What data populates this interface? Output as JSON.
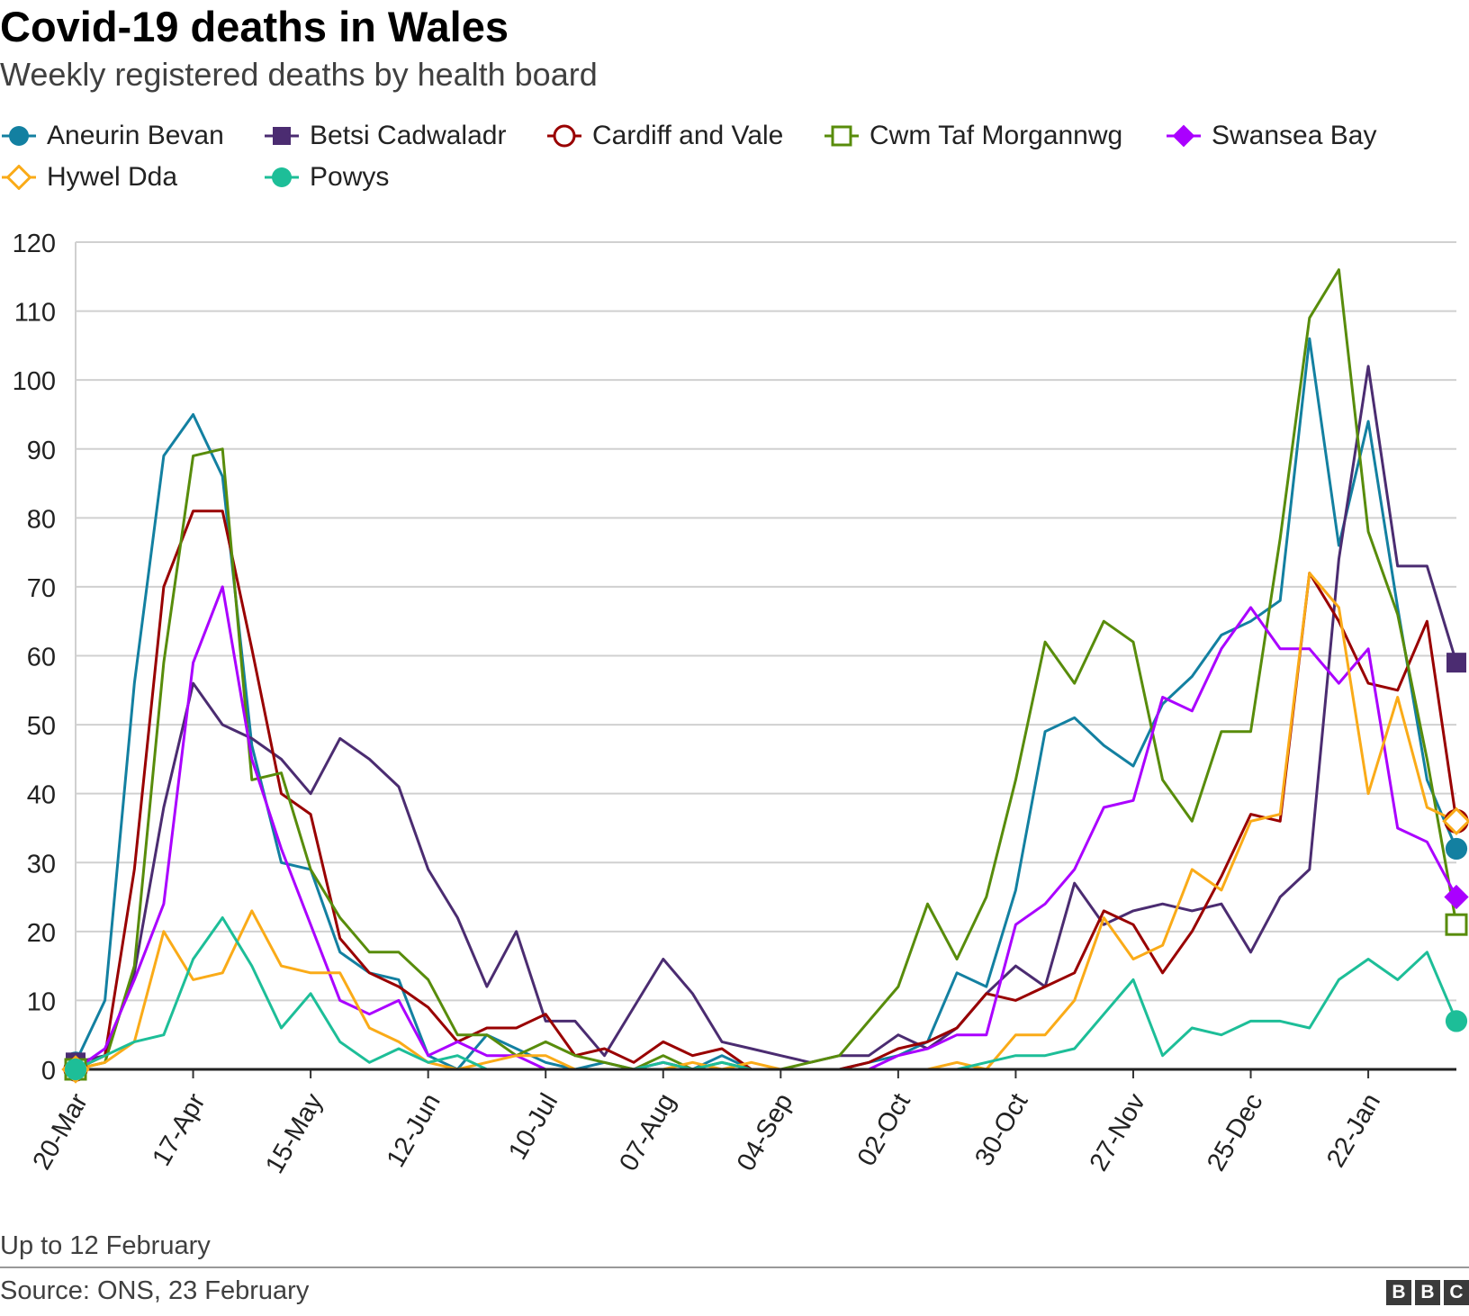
{
  "header": {
    "title": "Covid-19 deaths in Wales",
    "subtitle": "Weekly registered deaths by health board"
  },
  "footer": {
    "note": "Up to 12 February",
    "source": "Source: ONS, 23 February",
    "logo": "BBC",
    "logo_letters": [
      "B",
      "B",
      "C"
    ]
  },
  "chart_data": {
    "type": "line",
    "title": "Covid-19 deaths in Wales",
    "subtitle": "Weekly registered deaths by health board",
    "ylim": [
      0,
      120
    ],
    "y_ticks": [
      0,
      10,
      20,
      30,
      40,
      50,
      60,
      70,
      80,
      90,
      100,
      110,
      120
    ],
    "x_tick_labels": [
      "20-Mar",
      "17-Apr",
      "15-May",
      "12-Jun",
      "10-Jul",
      "07-Aug",
      "04-Sep",
      "02-Oct",
      "30-Oct",
      "27-Nov",
      "25-Dec",
      "22-Jan"
    ],
    "x_tick_indices": [
      0,
      4,
      8,
      12,
      16,
      20,
      24,
      28,
      32,
      36,
      40,
      44
    ],
    "x_start": "20-Mar",
    "x_end": "12 February",
    "x_interval": "weekly",
    "grid": true,
    "legend_position": "top",
    "series": [
      {
        "name": "Aneurin Bevan",
        "color": "#1380A1",
        "marker": "circle-filled",
        "values": [
          1,
          10,
          56,
          89,
          95,
          86,
          47,
          30,
          29,
          17,
          14,
          13,
          2,
          0,
          5,
          3,
          1,
          0,
          1,
          0,
          1,
          0,
          2,
          0,
          0,
          0,
          0,
          1,
          2,
          4,
          14,
          12,
          26,
          49,
          51,
          47,
          44,
          53,
          57,
          63,
          65,
          68,
          106,
          76,
          94,
          67,
          42,
          32
        ]
      },
      {
        "name": "Betsi Cadwaladr",
        "color": "#4B2C71",
        "marker": "square-filled",
        "values": [
          1,
          2,
          14,
          38,
          56,
          50,
          48,
          45,
          40,
          48,
          45,
          41,
          29,
          22,
          12,
          20,
          7,
          7,
          2,
          9,
          16,
          11,
          4,
          3,
          2,
          1,
          2,
          2,
          5,
          3,
          6,
          11,
          15,
          12,
          27,
          21,
          23,
          24,
          23,
          24,
          17,
          25,
          29,
          74,
          102,
          73,
          73,
          59
        ]
      },
      {
        "name": "Cardiff and Vale",
        "color": "#990000",
        "marker": "circle-open",
        "values": [
          0,
          2,
          29,
          70,
          81,
          81,
          61,
          40,
          37,
          19,
          14,
          12,
          9,
          4,
          6,
          6,
          8,
          2,
          3,
          1,
          4,
          2,
          3,
          0,
          0,
          0,
          0,
          1,
          3,
          4,
          6,
          11,
          10,
          12,
          14,
          23,
          21,
          14,
          20,
          28,
          37,
          36,
          72,
          65,
          56,
          55,
          65,
          36
        ]
      },
      {
        "name": "Cwm Taf Morgannwg",
        "color": "#588C0B",
        "marker": "square-open",
        "values": [
          0,
          1,
          15,
          59,
          89,
          90,
          42,
          43,
          29,
          22,
          17,
          17,
          13,
          5,
          5,
          2,
          4,
          2,
          1,
          0,
          2,
          0,
          1,
          0,
          0,
          1,
          2,
          7,
          12,
          24,
          16,
          25,
          42,
          62,
          56,
          65,
          62,
          42,
          36,
          49,
          49,
          77,
          109,
          116,
          78,
          66,
          45,
          21
        ]
      },
      {
        "name": "Swansea Bay",
        "color": "#AA00FF",
        "marker": "diamond-filled",
        "values": [
          0,
          3,
          13,
          24,
          59,
          70,
          45,
          32,
          21,
          10,
          8,
          10,
          2,
          4,
          2,
          2,
          0,
          0,
          0,
          0,
          1,
          0,
          0,
          0,
          0,
          0,
          0,
          0,
          2,
          3,
          5,
          5,
          21,
          24,
          29,
          38,
          39,
          54,
          52,
          61,
          67,
          61,
          61,
          56,
          61,
          35,
          33,
          25
        ]
      },
      {
        "name": "Hywel Dda",
        "color": "#FAAB18",
        "marker": "diamond-open",
        "values": [
          0,
          1,
          4,
          20,
          13,
          14,
          23,
          15,
          14,
          14,
          6,
          4,
          1,
          0,
          1,
          2,
          2,
          0,
          0,
          0,
          0,
          1,
          0,
          1,
          0,
          0,
          0,
          0,
          0,
          0,
          1,
          0,
          5,
          5,
          10,
          22,
          16,
          18,
          29,
          26,
          36,
          37,
          72,
          67,
          40,
          54,
          38,
          36
        ]
      },
      {
        "name": "Powys",
        "color": "#1DBE98",
        "marker": "circle-filled",
        "values": [
          0,
          2,
          4,
          5,
          16,
          22,
          15,
          6,
          11,
          4,
          1,
          3,
          1,
          2,
          0,
          0,
          0,
          0,
          0,
          0,
          1,
          0,
          1,
          0,
          0,
          0,
          0,
          0,
          0,
          0,
          0,
          1,
          2,
          2,
          3,
          8,
          13,
          2,
          6,
          5,
          7,
          7,
          6,
          13,
          16,
          13,
          17,
          7
        ]
      }
    ]
  }
}
